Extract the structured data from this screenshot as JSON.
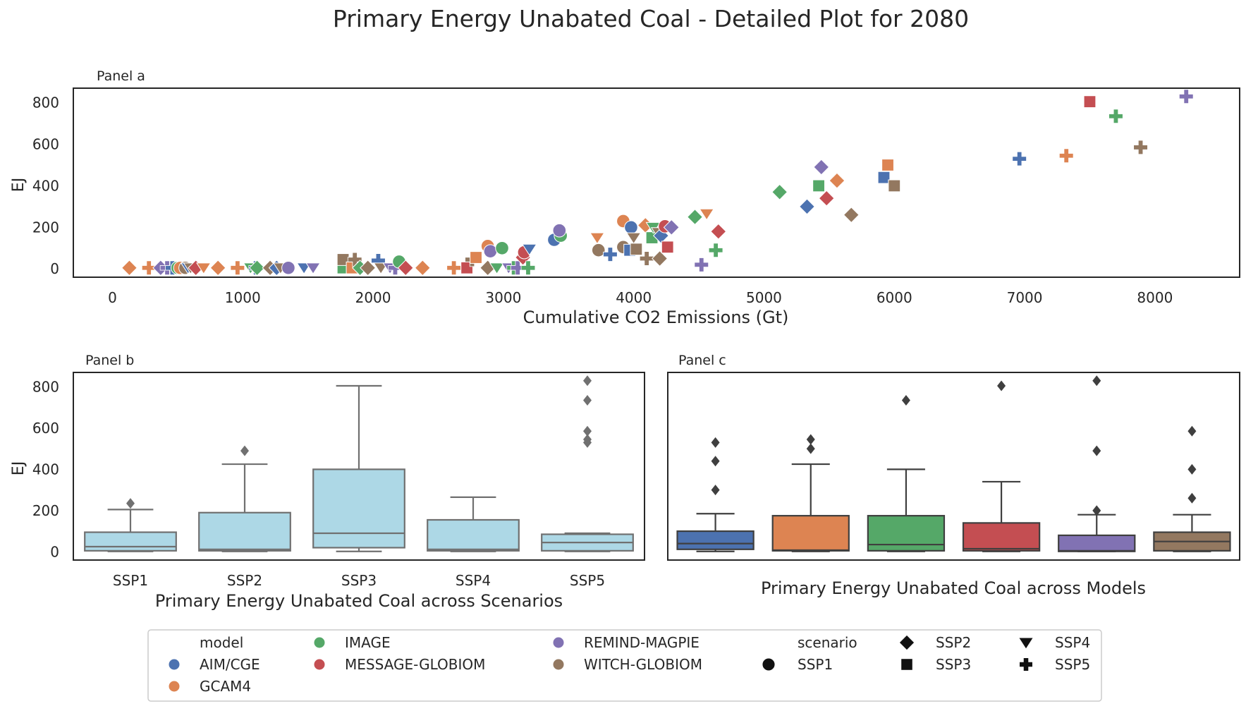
{
  "title": "Primary Energy Unabated Coal - Detailed Plot for 2080",
  "palette": {
    "AIM/CGE": "#4c72b0",
    "GCAM4": "#dd8452",
    "IMAGE": "#55a868",
    "MESSAGE-GLOBIOM": "#c44e52",
    "REMIND-MAGPIE": "#8172b3",
    "WITCH-GLOBIOM": "#937860",
    "box_b": "#add8e6",
    "box_edge": "#3f3f3f",
    "box_edge_b": "#707070"
  },
  "legend": {
    "model_title": "model",
    "scenario_title": "scenario",
    "models": [
      "AIM/CGE",
      "GCAM4",
      "IMAGE",
      "MESSAGE-GLOBIOM",
      "REMIND-MAGPIE",
      "WITCH-GLOBIOM"
    ],
    "scenarios": [
      "SSP1",
      "SSP2",
      "SSP3",
      "SSP4",
      "SSP5"
    ],
    "scenario_markers": {
      "SSP1": "circle",
      "SSP2": "diamond",
      "SSP3": "square",
      "SSP4": "triangle-down",
      "SSP5": "plus"
    }
  },
  "chart_data": [
    {
      "panel": "Panel a",
      "type": "scatter",
      "xlabel": "Cumulative CO2 Emissions (Gt)",
      "ylabel": "EJ",
      "xlim": [
        -300,
        8650
      ],
      "ylim": [
        -40,
        870
      ],
      "xticks": [
        0,
        1000,
        2000,
        3000,
        4000,
        5000,
        6000,
        7000,
        8000
      ],
      "yticks": [
        0,
        200,
        400,
        600,
        800
      ],
      "grid": false,
      "points": [
        {
          "x": 130,
          "y": 5,
          "model": "GCAM4",
          "scenario": "SSP2"
        },
        {
          "x": 280,
          "y": 5,
          "model": "GCAM4",
          "scenario": "SSP5"
        },
        {
          "x": 370,
          "y": 5,
          "model": "REMIND-MAGPIE",
          "scenario": "SSP2"
        },
        {
          "x": 420,
          "y": 5,
          "model": "REMIND-MAGPIE",
          "scenario": "SSP5"
        },
        {
          "x": 460,
          "y": 5,
          "model": "AIM/CGE",
          "scenario": "SSP5"
        },
        {
          "x": 500,
          "y": 5,
          "model": "IMAGE",
          "scenario": "SSP1"
        },
        {
          "x": 520,
          "y": 5,
          "model": "GCAM4",
          "scenario": "SSP1"
        },
        {
          "x": 560,
          "y": 5,
          "model": "WITCH-GLOBIOM",
          "scenario": "SSP1"
        },
        {
          "x": 580,
          "y": 5,
          "model": "AIM/CGE",
          "scenario": "SSP4"
        },
        {
          "x": 600,
          "y": 5,
          "model": "WITCH-GLOBIOM",
          "scenario": "SSP4"
        },
        {
          "x": 640,
          "y": 5,
          "model": "MESSAGE-GLOBIOM",
          "scenario": "SSP2"
        },
        {
          "x": 700,
          "y": 5,
          "model": "GCAM4",
          "scenario": "SSP4"
        },
        {
          "x": 810,
          "y": 5,
          "model": "GCAM4",
          "scenario": "SSP2"
        },
        {
          "x": 960,
          "y": 5,
          "model": "GCAM4",
          "scenario": "SSP5"
        },
        {
          "x": 1060,
          "y": 5,
          "model": "IMAGE",
          "scenario": "SSP4"
        },
        {
          "x": 1100,
          "y": 5,
          "model": "AIM/CGE",
          "scenario": "SSP5"
        },
        {
          "x": 1110,
          "y": 5,
          "model": "IMAGE",
          "scenario": "SSP2"
        },
        {
          "x": 1210,
          "y": 5,
          "model": "WITCH-GLOBIOM",
          "scenario": "SSP2"
        },
        {
          "x": 1260,
          "y": 5,
          "model": "AIM/CGE",
          "scenario": "SSP2"
        },
        {
          "x": 1290,
          "y": 5,
          "model": "WITCH-GLOBIOM",
          "scenario": "SSP4"
        },
        {
          "x": 1350,
          "y": 5,
          "model": "REMIND-MAGPIE",
          "scenario": "SSP1"
        },
        {
          "x": 1470,
          "y": 5,
          "model": "AIM/CGE",
          "scenario": "SSP4"
        },
        {
          "x": 1540,
          "y": 5,
          "model": "REMIND-MAGPIE",
          "scenario": "SSP4"
        },
        {
          "x": 1770,
          "y": 5,
          "model": "IMAGE",
          "scenario": "SSP3"
        },
        {
          "x": 1770,
          "y": 45,
          "model": "WITCH-GLOBIOM",
          "scenario": "SSP3"
        },
        {
          "x": 1840,
          "y": 5,
          "model": "GCAM4",
          "scenario": "SSP3"
        },
        {
          "x": 1860,
          "y": 45,
          "model": "WITCH-GLOBIOM",
          "scenario": "SSP5"
        },
        {
          "x": 1900,
          "y": 5,
          "model": "IMAGE",
          "scenario": "SSP2"
        },
        {
          "x": 1960,
          "y": 5,
          "model": "WITCH-GLOBIOM",
          "scenario": "SSP2"
        },
        {
          "x": 2040,
          "y": 40,
          "model": "AIM/CGE",
          "scenario": "SSP5"
        },
        {
          "x": 2060,
          "y": 5,
          "model": "WITCH-GLOBIOM",
          "scenario": "SSP4"
        },
        {
          "x": 2130,
          "y": 5,
          "model": "REMIND-MAGPIE",
          "scenario": "SSP4"
        },
        {
          "x": 2170,
          "y": 5,
          "model": "REMIND-MAGPIE",
          "scenario": "SSP5"
        },
        {
          "x": 2200,
          "y": 35,
          "model": "IMAGE",
          "scenario": "SSP1"
        },
        {
          "x": 2250,
          "y": 5,
          "model": "MESSAGE-GLOBIOM",
          "scenario": "SSP2"
        },
        {
          "x": 2380,
          "y": 5,
          "model": "GCAM4",
          "scenario": "SSP2"
        },
        {
          "x": 2620,
          "y": 5,
          "model": "GCAM4",
          "scenario": "SSP5"
        },
        {
          "x": 2720,
          "y": 5,
          "model": "MESSAGE-GLOBIOM",
          "scenario": "SSP3"
        },
        {
          "x": 2760,
          "y": 45,
          "model": "WITCH-GLOBIOM",
          "scenario": "SSP5"
        },
        {
          "x": 2790,
          "y": 55,
          "model": "GCAM4",
          "scenario": "SSP3"
        },
        {
          "x": 2880,
          "y": 5,
          "model": "WITCH-GLOBIOM",
          "scenario": "SSP2"
        },
        {
          "x": 2880,
          "y": 110,
          "model": "GCAM4",
          "scenario": "SSP1"
        },
        {
          "x": 2900,
          "y": 85,
          "model": "REMIND-MAGPIE",
          "scenario": "SSP1"
        },
        {
          "x": 2950,
          "y": 5,
          "model": "IMAGE",
          "scenario": "SSP4"
        },
        {
          "x": 2990,
          "y": 100,
          "model": "IMAGE",
          "scenario": "SSP1"
        },
        {
          "x": 3040,
          "y": 5,
          "model": "REMIND-MAGPIE",
          "scenario": "SSP4"
        },
        {
          "x": 3080,
          "y": 5,
          "model": "IMAGE",
          "scenario": "SSP5"
        },
        {
          "x": 3110,
          "y": 5,
          "model": "REMIND-MAGPIE",
          "scenario": "SSP5"
        },
        {
          "x": 3150,
          "y": 55,
          "model": "MESSAGE-GLOBIOM",
          "scenario": "SSP2"
        },
        {
          "x": 3160,
          "y": 80,
          "model": "MESSAGE-GLOBIOM",
          "scenario": "SSP1"
        },
        {
          "x": 3190,
          "y": 5,
          "model": "IMAGE",
          "scenario": "SSP5"
        },
        {
          "x": 3200,
          "y": 95,
          "model": "AIM/CGE",
          "scenario": "SSP4"
        },
        {
          "x": 3390,
          "y": 140,
          "model": "AIM/CGE",
          "scenario": "SSP1"
        },
        {
          "x": 3440,
          "y": 160,
          "model": "IMAGE",
          "scenario": "SSP1"
        },
        {
          "x": 3430,
          "y": 185,
          "model": "REMIND-MAGPIE",
          "scenario": "SSP1"
        },
        {
          "x": 3720,
          "y": 150,
          "model": "GCAM4",
          "scenario": "SSP4"
        },
        {
          "x": 3730,
          "y": 90,
          "model": "WITCH-GLOBIOM",
          "scenario": "SSP1"
        },
        {
          "x": 3820,
          "y": 70,
          "model": "AIM/CGE",
          "scenario": "SSP5"
        },
        {
          "x": 3920,
          "y": 230,
          "model": "GCAM4",
          "scenario": "SSP1"
        },
        {
          "x": 3920,
          "y": 105,
          "model": "WITCH-GLOBIOM",
          "scenario": "SSP1"
        },
        {
          "x": 3970,
          "y": 90,
          "model": "AIM/CGE",
          "scenario": "SSP3"
        },
        {
          "x": 3980,
          "y": 200,
          "model": "AIM/CGE",
          "scenario": "SSP1"
        },
        {
          "x": 4000,
          "y": 150,
          "model": "WITCH-GLOBIOM",
          "scenario": "SSP4"
        },
        {
          "x": 4020,
          "y": 95,
          "model": "WITCH-GLOBIOM",
          "scenario": "SSP3"
        },
        {
          "x": 4090,
          "y": 210,
          "model": "GCAM4",
          "scenario": "SSP2"
        },
        {
          "x": 4100,
          "y": 50,
          "model": "WITCH-GLOBIOM",
          "scenario": "SSP5"
        },
        {
          "x": 4140,
          "y": 150,
          "model": "IMAGE",
          "scenario": "SSP3"
        },
        {
          "x": 4150,
          "y": 200,
          "model": "IMAGE",
          "scenario": "SSP4"
        },
        {
          "x": 4190,
          "y": 175,
          "model": "WITCH-GLOBIOM",
          "scenario": "SSP4"
        },
        {
          "x": 4210,
          "y": 160,
          "model": "AIM/CGE",
          "scenario": "SSP2"
        },
        {
          "x": 4200,
          "y": 50,
          "model": "WITCH-GLOBIOM",
          "scenario": "SSP2"
        },
        {
          "x": 4240,
          "y": 205,
          "model": "MESSAGE-GLOBIOM",
          "scenario": "SSP1"
        },
        {
          "x": 4260,
          "y": 105,
          "model": "MESSAGE-GLOBIOM",
          "scenario": "SSP3"
        },
        {
          "x": 4290,
          "y": 200,
          "model": "REMIND-MAGPIE",
          "scenario": "SSP2"
        },
        {
          "x": 4470,
          "y": 250,
          "model": "IMAGE",
          "scenario": "SSP2"
        },
        {
          "x": 4520,
          "y": 20,
          "model": "REMIND-MAGPIE",
          "scenario": "SSP5"
        },
        {
          "x": 4560,
          "y": 265,
          "model": "GCAM4",
          "scenario": "SSP4"
        },
        {
          "x": 4630,
          "y": 90,
          "model": "IMAGE",
          "scenario": "SSP5"
        },
        {
          "x": 4650,
          "y": 180,
          "model": "MESSAGE-GLOBIOM",
          "scenario": "SSP2"
        },
        {
          "x": 5120,
          "y": 370,
          "model": "IMAGE",
          "scenario": "SSP2"
        },
        {
          "x": 5330,
          "y": 300,
          "model": "AIM/CGE",
          "scenario": "SSP2"
        },
        {
          "x": 5420,
          "y": 400,
          "model": "IMAGE",
          "scenario": "SSP3"
        },
        {
          "x": 5440,
          "y": 490,
          "model": "REMIND-MAGPIE",
          "scenario": "SSP2"
        },
        {
          "x": 5480,
          "y": 340,
          "model": "MESSAGE-GLOBIOM",
          "scenario": "SSP2"
        },
        {
          "x": 5560,
          "y": 425,
          "model": "GCAM4",
          "scenario": "SSP2"
        },
        {
          "x": 5670,
          "y": 260,
          "model": "WITCH-GLOBIOM",
          "scenario": "SSP2"
        },
        {
          "x": 5920,
          "y": 440,
          "model": "AIM/CGE",
          "scenario": "SSP3"
        },
        {
          "x": 5950,
          "y": 500,
          "model": "GCAM4",
          "scenario": "SSP3"
        },
        {
          "x": 6000,
          "y": 400,
          "model": "WITCH-GLOBIOM",
          "scenario": "SSP3"
        },
        {
          "x": 6960,
          "y": 530,
          "model": "AIM/CGE",
          "scenario": "SSP5"
        },
        {
          "x": 7320,
          "y": 545,
          "model": "GCAM4",
          "scenario": "SSP5"
        },
        {
          "x": 7500,
          "y": 805,
          "model": "MESSAGE-GLOBIOM",
          "scenario": "SSP3"
        },
        {
          "x": 7700,
          "y": 735,
          "model": "IMAGE",
          "scenario": "SSP5"
        },
        {
          "x": 7890,
          "y": 585,
          "model": "WITCH-GLOBIOM",
          "scenario": "SSP5"
        },
        {
          "x": 8240,
          "y": 830,
          "model": "REMIND-MAGPIE",
          "scenario": "SSP5"
        }
      ]
    },
    {
      "panel": "Panel b",
      "type": "box",
      "xlabel": "Primary Energy Unabated Coal across Scenarios",
      "ylabel": "EJ",
      "ylim": [
        -40,
        870
      ],
      "yticks": [
        0,
        200,
        400,
        600,
        800
      ],
      "categories": [
        "SSP1",
        "SSP2",
        "SSP3",
        "SSP4",
        "SSP5"
      ],
      "boxes": [
        {
          "whislo": 2,
          "q1": 5,
          "med": 25,
          "q3": 95,
          "whishi": 205,
          "fliers": [
            235
          ]
        },
        {
          "whislo": 2,
          "q1": 5,
          "med": 12,
          "q3": 190,
          "whishi": 425,
          "fliers": [
            490
          ]
        },
        {
          "whislo": 2,
          "q1": 20,
          "med": 90,
          "q3": 400,
          "whishi": 805,
          "fliers": []
        },
        {
          "whislo": 2,
          "q1": 5,
          "med": 12,
          "q3": 155,
          "whishi": 265,
          "fliers": []
        },
        {
          "whislo": 2,
          "q1": 5,
          "med": 45,
          "q3": 85,
          "whishi": 90,
          "fliers": [
            530,
            545,
            585,
            735,
            830
          ]
        }
      ]
    },
    {
      "panel": "Panel c",
      "type": "box",
      "xlabel": "Primary Energy Unabated Coal across Models",
      "ylim": [
        -40,
        870
      ],
      "categories": [
        "AIM/CGE",
        "GCAM4",
        "IMAGE",
        "MESSAGE-GLOBIOM",
        "REMIND-MAGPIE",
        "WITCH-GLOBIOM"
      ],
      "boxes": [
        {
          "whislo": 2,
          "q1": 12,
          "med": 40,
          "q3": 100,
          "whishi": 185,
          "fliers": [
            300,
            440,
            530
          ]
        },
        {
          "whislo": 2,
          "q1": 5,
          "med": 8,
          "q3": 175,
          "whishi": 425,
          "fliers": [
            500,
            545
          ]
        },
        {
          "whislo": 2,
          "q1": 5,
          "med": 35,
          "q3": 175,
          "whishi": 400,
          "fliers": [
            735
          ]
        },
        {
          "whislo": 2,
          "q1": 5,
          "med": 15,
          "q3": 140,
          "whishi": 340,
          "fliers": [
            805
          ]
        },
        {
          "whislo": 2,
          "q1": 2,
          "med": 5,
          "q3": 80,
          "whishi": 180,
          "fliers": [
            200,
            490,
            830
          ]
        },
        {
          "whislo": 2,
          "q1": 5,
          "med": 50,
          "q3": 95,
          "whishi": 180,
          "fliers": [
            260,
            400,
            585
          ]
        }
      ]
    }
  ]
}
